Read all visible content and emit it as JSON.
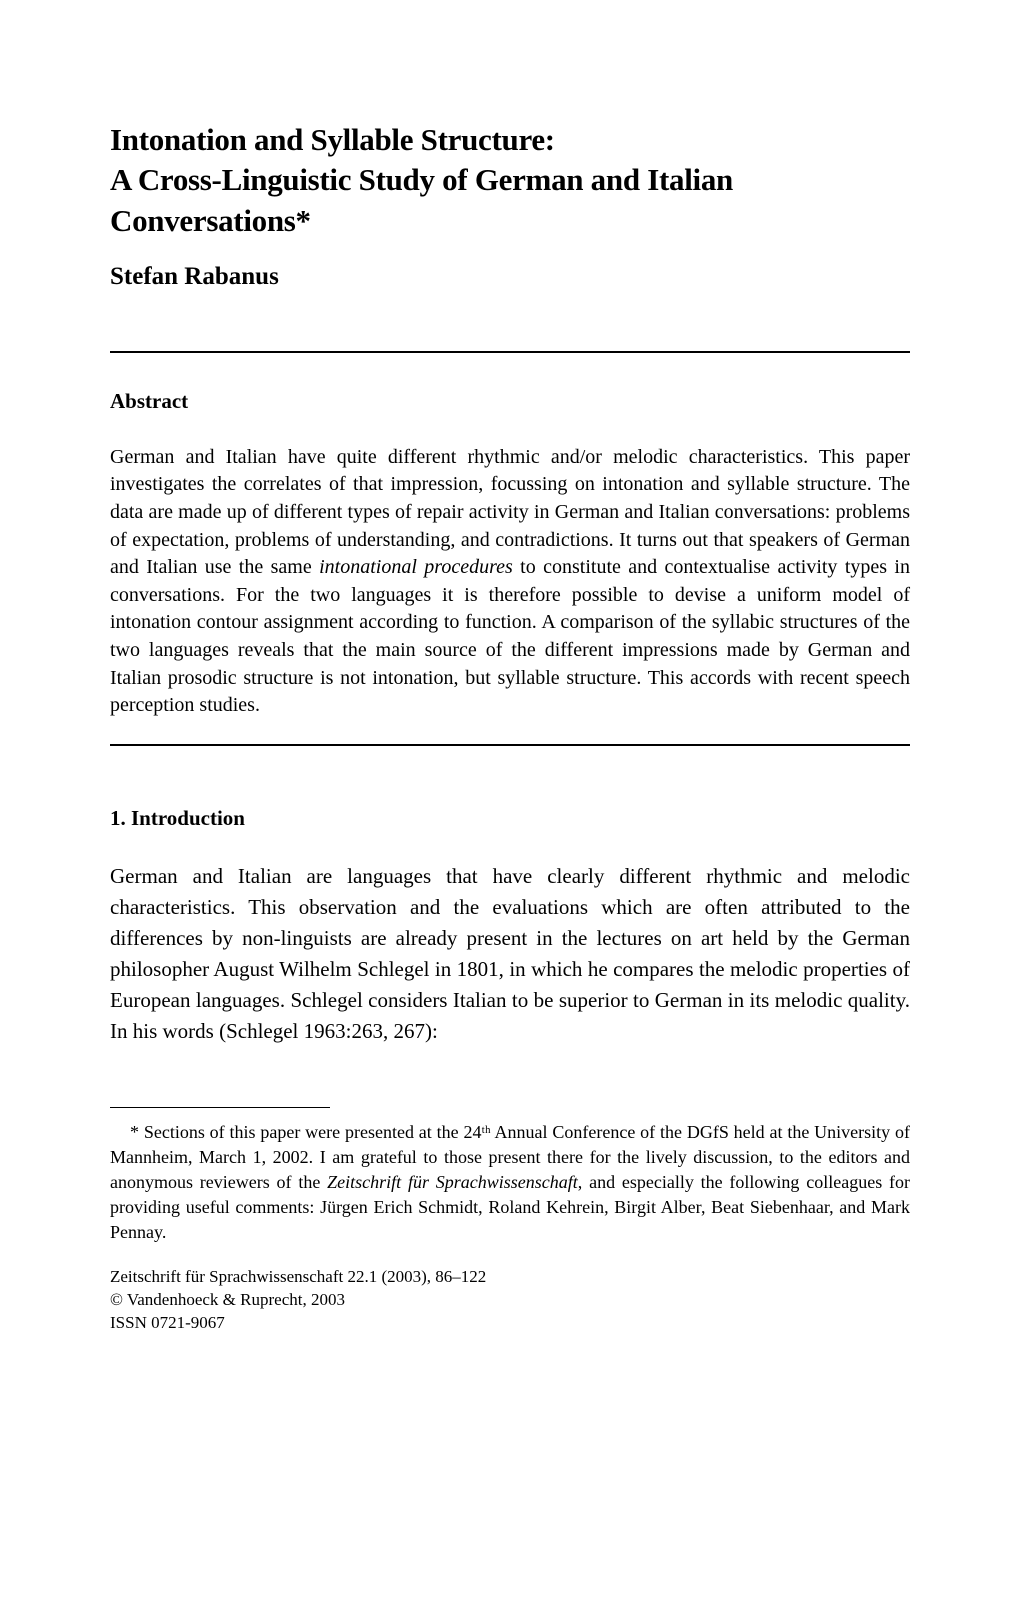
{
  "title": {
    "line1": "Intonation and Syllable Structure:",
    "line2": "A Cross-Linguistic Study of German and Italian Conversations*"
  },
  "author": "Stefan Rabanus",
  "abstract": {
    "heading": "Abstract",
    "text_part1": "German and Italian have quite different rhythmic and/or melodic characteristics. This paper investigates the correlates of that impression, focussing on intonation and syllable structure. The data are made up of different types of repair activity in German and Italian conversations: problems of expectation, problems of understanding, and contradictions. It turns out that speakers of German and Italian use the same ",
    "text_italic": "intonational procedures",
    "text_part2": " to constitute and contextualise activity types in conversations. For the two languages it is therefore possible to devise a uniform model of intonation contour assignment according to function. A comparison of the syllabic structures of the two languages reveals that the main source of the different impressions made by German and Italian prosodic structure is not intonation, but syllable structure. This accords with recent speech perception studies."
  },
  "introduction": {
    "heading": "1. Introduction",
    "text": "German and Italian are languages that have clearly different rhythmic and melodic characteristics. This observation and the evaluations which are often attributed to the differences by non-linguists are already present in the lectures on art held by the German philosopher August Wilhelm Schlegel in 1801, in which he compares the melodic properties of European languages. Schlegel considers Italian to be superior to German in its melodic quality. In his words (Schlegel 1963:263, 267):"
  },
  "footnote": {
    "marker": "*",
    "text_part1": " Sections of this paper were presented at the 24ᵗʰ Annual Conference of the DGfS held at the University of Mannheim, March 1, 2002. I am grateful to those present there for the lively discussion, to the editors and anonymous reviewers of the ",
    "text_italic1": "Zeitschrift für Sprachwissenschaft",
    "text_part2": ", and especially the following colleagues for providing useful comments: Jürgen Erich Schmidt, Roland Kehrein, Birgit Alber, Beat Siebenhaar, and Mark Pennay."
  },
  "citation": {
    "line1": "Zeitschrift für Sprachwissenschaft 22.1 (2003), 86–122",
    "line2": "© Vandenhoeck & Ruprecht, 2003",
    "line3": "ISSN 0721-9067"
  }
}
